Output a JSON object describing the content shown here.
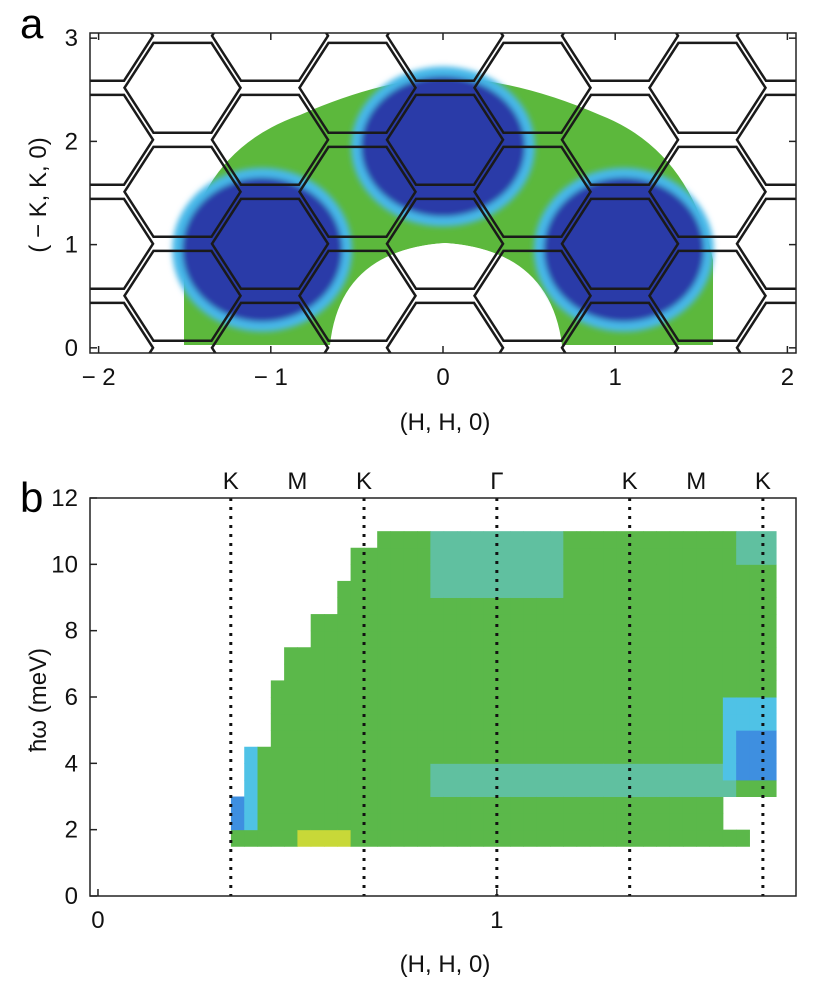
{
  "chart_data": [
    {
      "panel": "a",
      "type": "heatmap",
      "xlabel": "(H, H, 0)",
      "ylabel": "( − K, K, 0)",
      "xlim": [
        -2.05,
        2.05
      ],
      "ylim": [
        -0.05,
        3.05
      ],
      "xticks": [
        -2,
        -1,
        0,
        1,
        2
      ],
      "xtick_labels": [
        "− 2",
        "− 1",
        "0",
        "1",
        "2"
      ],
      "yticks": [
        0,
        1,
        2,
        3
      ],
      "ytick_labels": [
        "0",
        "1",
        "2",
        "3"
      ],
      "colors": {
        "low": "#2a3aa8",
        "edge": "#46b8e8",
        "mid": "#5cb83c",
        "empty": "#ffffff"
      },
      "brillouin_zone_outline": "hexagons",
      "intensity_maxima": [
        {
          "x": 0.0,
          "y": 1.95
        },
        {
          "x": -1.05,
          "y": 0.95
        },
        {
          "x": 1.05,
          "y": 0.95
        }
      ]
    },
    {
      "panel": "b",
      "type": "heatmap",
      "xlabel": "(H, H, 0)",
      "ylabel": "ħω (meV)",
      "xlim": [
        -0.02,
        1.75
      ],
      "ylim": [
        0,
        12
      ],
      "xticks": [
        0,
        1
      ],
      "xtick_labels": [
        "0",
        "1"
      ],
      "yticks": [
        0,
        2,
        4,
        6,
        8,
        10,
        12
      ],
      "ytick_labels": [
        "0",
        "2",
        "4",
        "6",
        "8",
        "10",
        "12"
      ],
      "special_points": [
        {
          "label": "K",
          "x": 0.333
        },
        {
          "label": "M",
          "x": 0.5
        },
        {
          "label": "K",
          "x": 0.667
        },
        {
          "label": "Γ",
          "x": 1.0
        },
        {
          "label": "K",
          "x": 1.333
        },
        {
          "label": "M",
          "x": 1.5
        },
        {
          "label": "K",
          "x": 1.667
        }
      ],
      "dotted_lines_at": [
        0.333,
        0.667,
        1.0,
        1.333,
        1.667
      ],
      "colors": {
        "base": "#5bb84a",
        "cyan": "#4fc2e6",
        "blue": "#3e8fe0",
        "teal": "#60c0a0",
        "yellow": "#c8d838"
      }
    }
  ]
}
